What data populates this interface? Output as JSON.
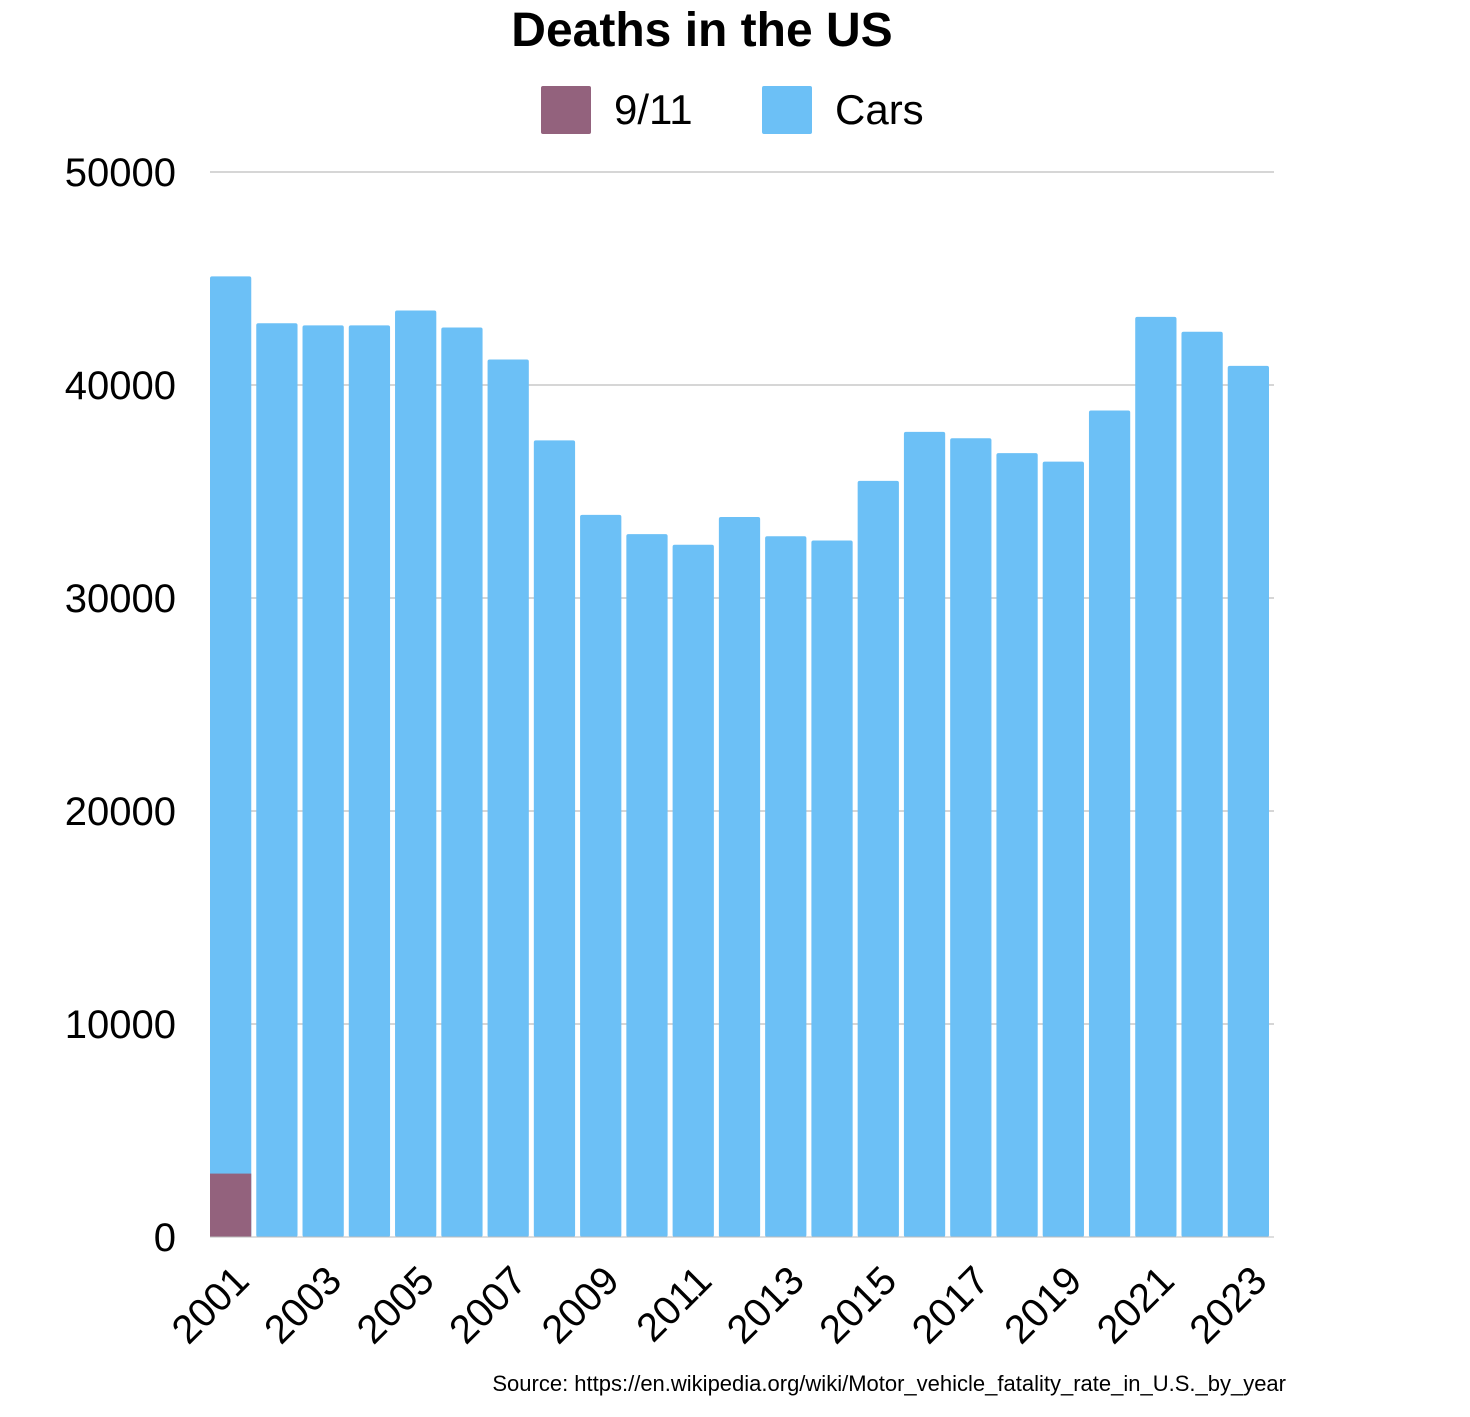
{
  "chart_data": {
    "type": "bar",
    "title": "Deaths in the US",
    "xlabel": "",
    "ylabel": "",
    "ylim": [
      0,
      50000
    ],
    "yticks": [
      0,
      10000,
      20000,
      30000,
      40000,
      50000
    ],
    "grid": true,
    "legend_position": "top-center",
    "categories": [
      "2001",
      "2002",
      "2003",
      "2004",
      "2005",
      "2006",
      "2007",
      "2008",
      "2009",
      "2010",
      "2011",
      "2012",
      "2013",
      "2014",
      "2015",
      "2016",
      "2017",
      "2018",
      "2019",
      "2020",
      "2021",
      "2022",
      "2023"
    ],
    "x_tick_labels": [
      "2001",
      "2003",
      "2005",
      "2007",
      "2009",
      "2011",
      "2013",
      "2015",
      "2017",
      "2019",
      "2021",
      "2023"
    ],
    "series": [
      {
        "name": "9/11",
        "color": "#93627d",
        "values": [
          2977,
          null,
          null,
          null,
          null,
          null,
          null,
          null,
          null,
          null,
          null,
          null,
          null,
          null,
          null,
          null,
          null,
          null,
          null,
          null,
          null,
          null,
          null
        ]
      },
      {
        "name": "Cars",
        "color": "#6cc0f6",
        "values": [
          45100,
          42900,
          42800,
          42800,
          43500,
          42700,
          41200,
          37400,
          33900,
          32999,
          32500,
          33800,
          32900,
          32700,
          35500,
          37800,
          37500,
          36800,
          36400,
          38800,
          43200,
          42500,
          40900
        ]
      }
    ],
    "annotations": [
      "Source: https://en.wikipedia.org/wiki/Motor_vehicle_fatality_rate_in_U.S._by_year"
    ]
  }
}
